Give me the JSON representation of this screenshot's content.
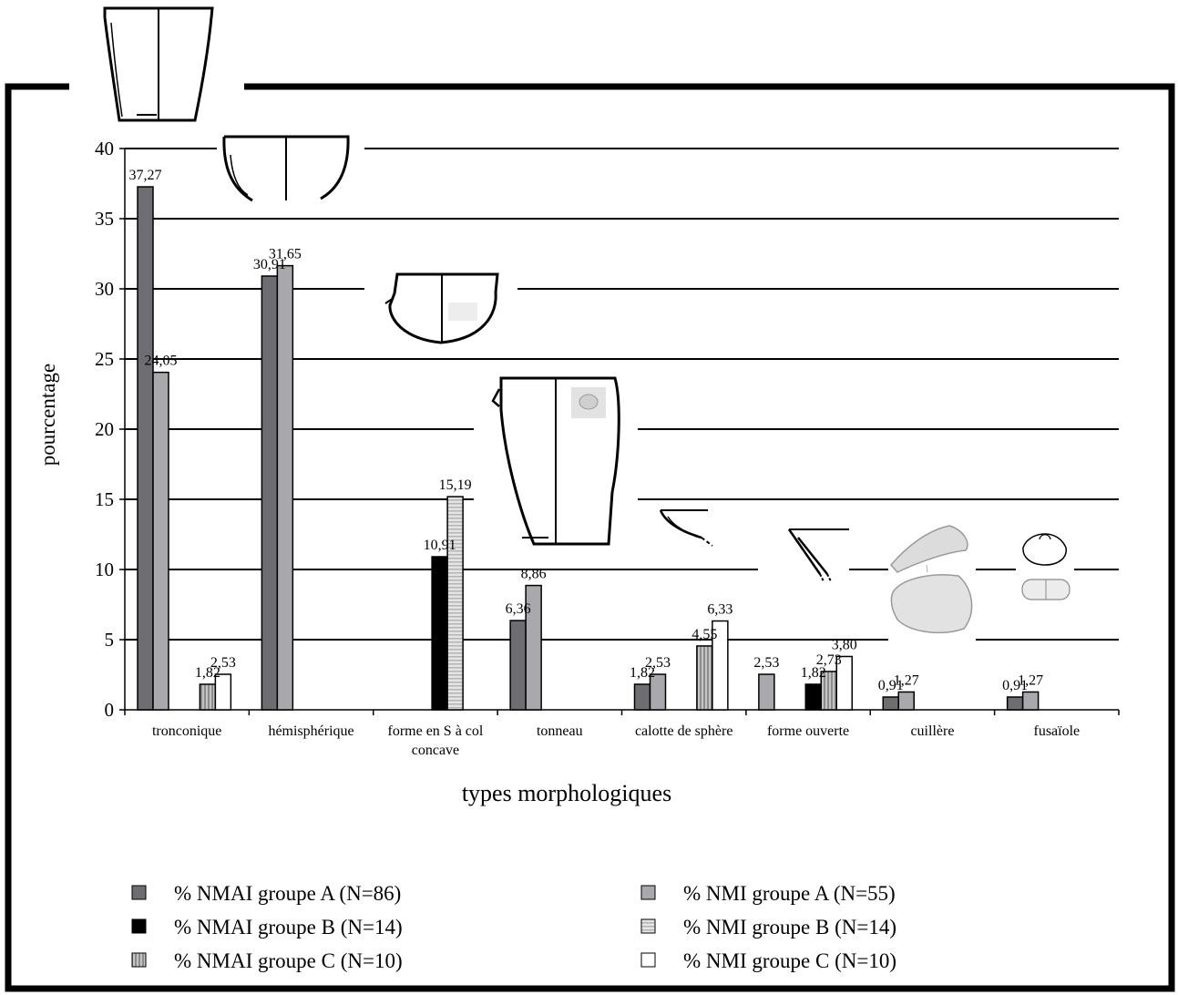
{
  "chart_data": {
    "type": "bar",
    "title": "",
    "xlabel": "types morphologiques",
    "ylabel": "pourcentage",
    "ylim": [
      0,
      40
    ],
    "yticks": [
      0,
      5,
      10,
      15,
      20,
      25,
      30,
      35,
      40
    ],
    "grid": true,
    "legend_position": "bottom",
    "categories": [
      "tronconique",
      "hémisphérique",
      "forme en S à col concave",
      "tonneau",
      "calotte de sphère",
      "forme ouverte",
      "cuillère",
      "fusaïole"
    ],
    "category_lines": [
      [
        "tronconique"
      ],
      [
        "hémisphérique"
      ],
      [
        "forme en S à col",
        "concave"
      ],
      [
        "tonneau"
      ],
      [
        "calotte de sphère"
      ],
      [
        "forme ouverte"
      ],
      [
        "cuillère"
      ],
      [
        "fusaïole"
      ]
    ],
    "series": [
      {
        "name": "% NMAI groupe A (N=86)",
        "color": "#6e6e72",
        "pattern": "solid",
        "values": [
          37.27,
          30.91,
          null,
          6.36,
          1.82,
          null,
          0.91,
          0.91
        ],
        "labels": [
          "37,27",
          "30,91",
          "",
          "6,36",
          "1,82",
          "",
          "0,91",
          "0,91"
        ]
      },
      {
        "name": "% NMI groupe A (N=55)",
        "color": "#a9a9ad",
        "pattern": "solid",
        "values": [
          24.05,
          31.65,
          null,
          8.86,
          2.53,
          2.53,
          1.27,
          1.27
        ],
        "labels": [
          "24,05",
          "31,65",
          "",
          "8,86",
          "2,53",
          "2,53",
          "1,27",
          "1,27"
        ]
      },
      {
        "name": "% NMAI groupe B (N=14)",
        "color": "#000000",
        "pattern": "solid",
        "values": [
          null,
          null,
          10.91,
          null,
          null,
          1.82,
          null,
          null
        ],
        "labels": [
          "",
          "",
          "10,91",
          "",
          "",
          "1,82",
          "",
          ""
        ]
      },
      {
        "name": "% NMI groupe B (N=14)",
        "color": "#d3d3d3",
        "pattern": "hstripe",
        "values": [
          null,
          null,
          15.19,
          null,
          null,
          null,
          null,
          null
        ],
        "labels": [
          "",
          "",
          "15,19",
          "",
          "",
          "",
          "",
          ""
        ]
      },
      {
        "name": "% NMAI groupe C (N=10)",
        "color": "#b9b9b9",
        "pattern": "vstripe",
        "values": [
          1.82,
          null,
          null,
          null,
          4.55,
          2.73,
          null,
          null
        ],
        "labels": [
          "1,82",
          "",
          "",
          "",
          "4,55",
          "2,73",
          "",
          ""
        ]
      },
      {
        "name": "% NMI groupe C (N=10)",
        "color": "#ffffff",
        "pattern": "solid",
        "values": [
          2.53,
          null,
          null,
          null,
          6.33,
          3.8,
          null,
          null
        ],
        "labels": [
          "2,53",
          "",
          "",
          "",
          "6,33",
          "3,80",
          "",
          ""
        ]
      }
    ],
    "legend_order": [
      0,
      1,
      2,
      3,
      4,
      5
    ]
  }
}
